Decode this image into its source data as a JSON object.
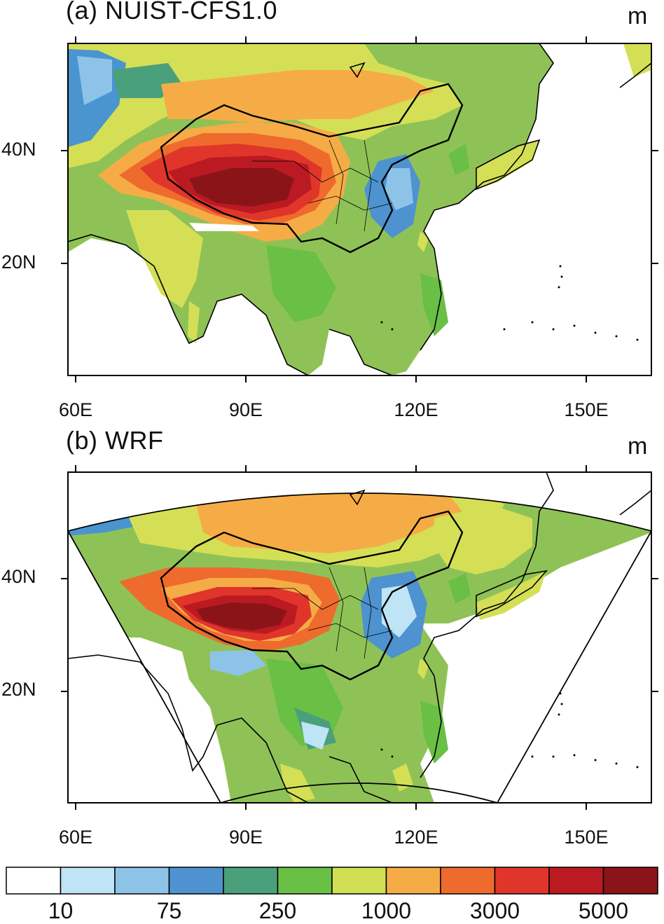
{
  "panels": [
    {
      "title": "(a) NUIST-CFS1.0",
      "unit": "m"
    },
    {
      "title": "(b) WRF",
      "unit": "m"
    }
  ],
  "axes": {
    "lon_labels": [
      "60E",
      "90E",
      "120E",
      "150E"
    ],
    "lat_labels": [
      "40N",
      "20N"
    ]
  },
  "colorbar": {
    "colors": [
      "#ffffff",
      "#bfe4f6",
      "#8ec3e8",
      "#4e92cf",
      "#4aa07a",
      "#6abf45",
      "#d1df55",
      "#f6ac46",
      "#ee6b2d",
      "#e0352a",
      "#bb1a23",
      "#8b1419"
    ],
    "labels": [
      "10",
      "75",
      "250",
      "1000",
      "3000",
      "5000"
    ]
  }
}
